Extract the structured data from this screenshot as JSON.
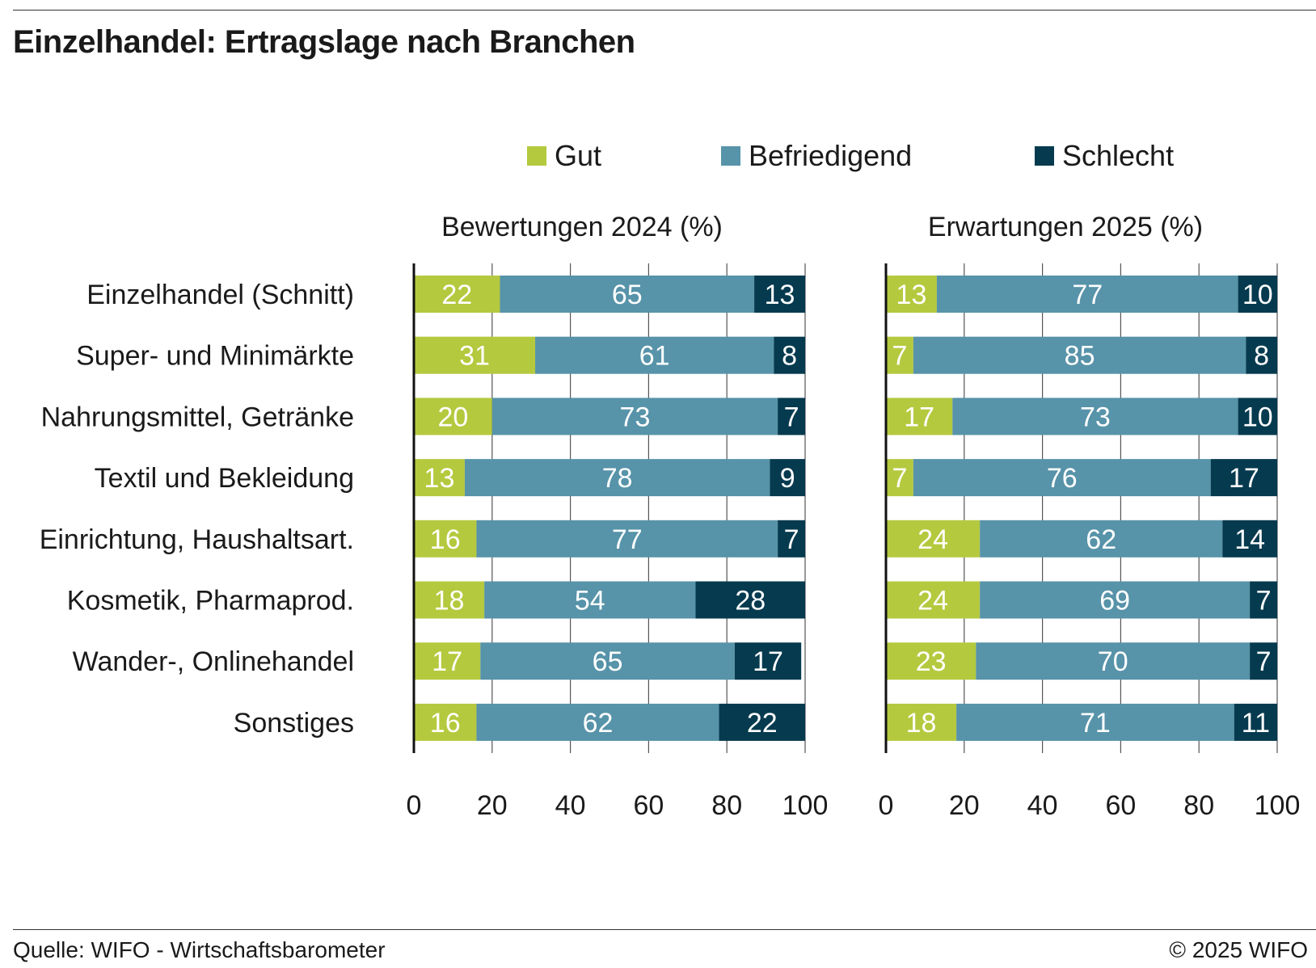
{
  "title": "Einzelhandel: Ertragslage nach Branchen",
  "footer": {
    "source": "Quelle: WIFO - Wirtschaftsbarometer",
    "copyright": "© 2025 WIFO"
  },
  "colors": {
    "gut": "#b5c93e",
    "befriedigend": "#5793a9",
    "schlecht": "#063a4f"
  },
  "legend": [
    "Gut",
    "Befriedigend",
    "Schlecht"
  ],
  "chart_data": [
    {
      "type": "bar",
      "stacked": true,
      "orientation": "horizontal",
      "title": "Bewertungen 2024 (%)",
      "categories": [
        "Einzelhandel (Schnitt)",
        "Super- und Minimärkte",
        "Nahrungsmittel, Getränke",
        "Textil und Bekleidung",
        "Einrichtung, Haushaltsart.",
        "Kosmetik, Pharmaprod.",
        "Wander-, Onlinehandel",
        "Sonstiges"
      ],
      "series": [
        {
          "name": "Gut",
          "values": [
            22,
            31,
            20,
            13,
            16,
            18,
            17,
            16
          ]
        },
        {
          "name": "Befriedigend",
          "values": [
            65,
            61,
            73,
            78,
            77,
            54,
            65,
            62
          ]
        },
        {
          "name": "Schlecht",
          "values": [
            13,
            8,
            7,
            9,
            7,
            28,
            17,
            22
          ]
        }
      ],
      "xlim": [
        0,
        100
      ],
      "xticks": [
        "0",
        "20",
        "40",
        "60",
        "80",
        "100"
      ],
      "grid": true,
      "legend_position": "top"
    },
    {
      "type": "bar",
      "stacked": true,
      "orientation": "horizontal",
      "title": "Erwartungen 2025 (%)",
      "categories": [
        "Einzelhandel (Schnitt)",
        "Super- und Minimärkte",
        "Nahrungsmittel, Getränke",
        "Textil und Bekleidung",
        "Einrichtung, Haushaltsart.",
        "Kosmetik, Pharmaprod.",
        "Wander-, Onlinehandel",
        "Sonstiges"
      ],
      "series": [
        {
          "name": "Gut",
          "values": [
            13,
            7,
            17,
            7,
            24,
            24,
            23,
            18
          ]
        },
        {
          "name": "Befriedigend",
          "values": [
            77,
            85,
            73,
            76,
            62,
            69,
            70,
            71
          ]
        },
        {
          "name": "Schlecht",
          "values": [
            10,
            8,
            10,
            17,
            14,
            7,
            7,
            11
          ]
        }
      ],
      "xlim": [
        0,
        100
      ],
      "xticks": [
        "0",
        "20",
        "40",
        "60",
        "80",
        "100"
      ],
      "grid": true,
      "legend_position": "top"
    }
  ]
}
